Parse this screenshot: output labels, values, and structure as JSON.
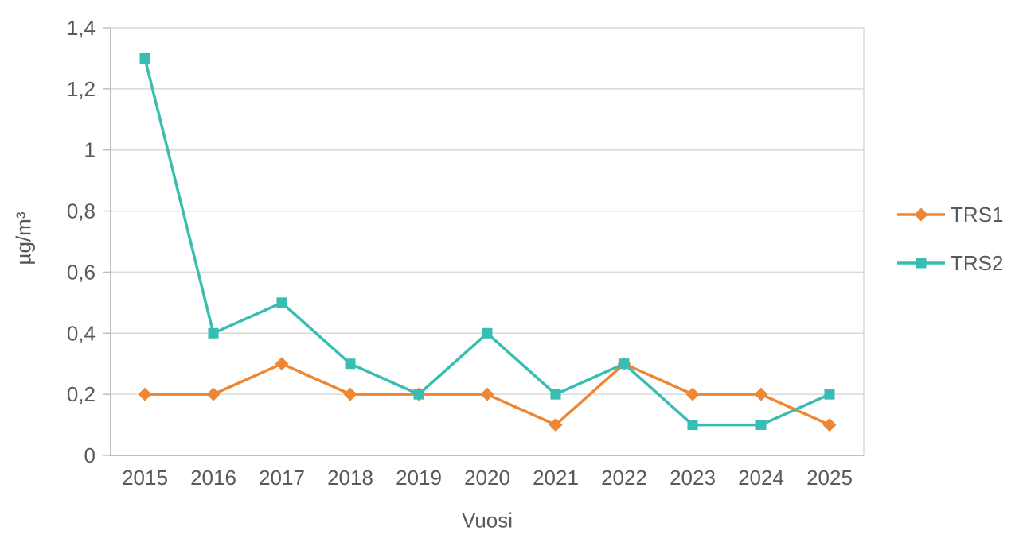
{
  "chart_data": {
    "type": "line",
    "title": "",
    "xlabel": "Vuosi",
    "ylabel": "µg/m³",
    "categories": [
      "2015",
      "2016",
      "2017",
      "2018",
      "2019",
      "2020",
      "2021",
      "2022",
      "2023",
      "2024",
      "2025"
    ],
    "series": [
      {
        "name": "TRS1",
        "color": "#ED8733",
        "marker": "diamond",
        "values": [
          0.2,
          0.2,
          0.3,
          0.2,
          0.2,
          0.2,
          0.1,
          0.3,
          0.2,
          0.2,
          0.1
        ]
      },
      {
        "name": "TRS2",
        "color": "#38BDB2",
        "marker": "square",
        "values": [
          1.3,
          0.4,
          0.5,
          0.3,
          0.2,
          0.4,
          0.2,
          0.3,
          0.1,
          0.1,
          0.2
        ]
      }
    ],
    "ylim": [
      0,
      1.4
    ],
    "ytick_values": [
      0,
      0.2,
      0.4,
      0.6,
      0.8,
      1,
      1.2,
      1.4
    ],
    "ytick_labels": [
      "0",
      "0,2",
      "0,4",
      "0,6",
      "0,8",
      "1",
      "1,2",
      "1,4"
    ],
    "grid": true,
    "legend_position": "right"
  },
  "style_colors": {
    "text": "#595959",
    "gridline": "#D9D9D9",
    "axis": "#BFBFBF",
    "background": "#FFFFFF"
  }
}
